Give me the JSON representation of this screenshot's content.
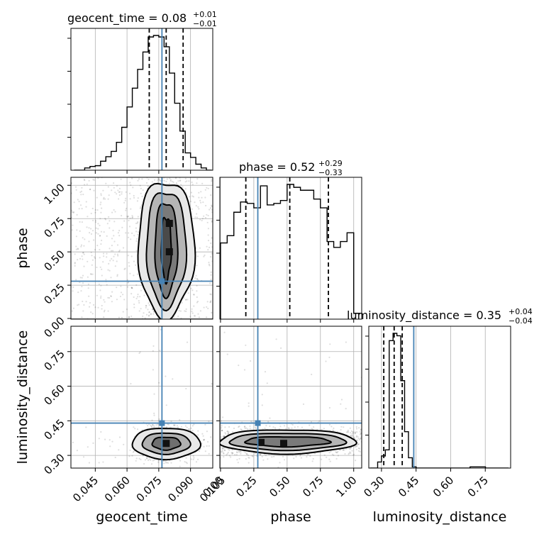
{
  "titles": {
    "geocent_time": "geocent_time = 0.08",
    "geocent_time_sup": "+0.01",
    "geocent_time_sub": "−0.01",
    "phase": "phase = 0.52",
    "phase_sup": "+0.29",
    "phase_sub": "−0.33",
    "luminosity_distance": "luminosity_distance = 0.35",
    "luminosity_distance_sup": "+0.04",
    "luminosity_distance_sub": "−0.04"
  },
  "axis_labels": {
    "geocent_time": "geocent_time",
    "phase": "phase",
    "luminosity_distance": "luminosity_distance"
  },
  "ticks": {
    "geocent_time": [
      "0.045",
      "0.060",
      "0.075",
      "0.090",
      "0.105"
    ],
    "phase": [
      "0.00",
      "0.25",
      "0.50",
      "0.75",
      "1.00"
    ],
    "luminosity_distance": [
      "0.30",
      "0.45",
      "0.60",
      "0.75"
    ]
  },
  "colors": {
    "truth": "#4682b4",
    "hist": "#000000",
    "grid": "#b0b0b0"
  },
  "chart_data": {
    "type": "corner",
    "parameters": [
      "geocent_time",
      "phase",
      "luminosity_distance"
    ],
    "truths": {
      "geocent_time": 0.0765,
      "phase": 0.28,
      "luminosity_distance": 0.44
    },
    "medians": {
      "geocent_time": 0.08,
      "phase": 0.52,
      "luminosity_distance": 0.35
    },
    "quantiles": {
      "geocent_time": [
        0.0705,
        0.0785,
        0.0865
      ],
      "phase": [
        0.19,
        0.52,
        0.81
      ],
      "luminosity_distance": [
        0.31,
        0.355,
        0.39
      ]
    },
    "ranges": {
      "geocent_time": [
        0.0335,
        0.1005
      ],
      "phase": [
        -0.005,
        1.06
      ],
      "luminosity_distance": [
        0.245,
        0.86
      ]
    },
    "histograms": {
      "geocent_time": {
        "edges_start": 0.035,
        "bin_width": 0.0025,
        "counts": [
          0,
          0,
          3,
          5,
          6,
          12,
          18,
          25,
          37,
          57,
          84,
          109,
          134,
          157,
          177,
          179,
          177,
          164,
          129,
          89,
          52,
          23,
          17,
          8,
          3,
          0
        ]
      },
      "phase": {
        "edges_start": 0.0,
        "bin_width": 0.05,
        "counts": [
          52,
          57,
          73,
          80,
          79,
          76,
          91,
          78,
          79,
          81,
          92,
          90,
          88,
          88,
          82,
          76,
          53,
          49,
          53,
          59,
          4
        ]
      },
      "luminosity_distance": {
        "edges_start": 0.25,
        "bin_width": 0.0167,
        "counts": [
          0,
          0,
          10,
          20,
          30,
          210,
          222,
          218,
          144,
          60,
          17,
          2,
          0,
          0,
          0,
          0,
          0,
          0,
          0,
          0,
          0,
          0,
          0,
          0,
          0,
          0,
          2,
          2,
          2,
          2,
          0,
          0,
          0,
          0,
          0,
          0
        ]
      }
    }
  }
}
